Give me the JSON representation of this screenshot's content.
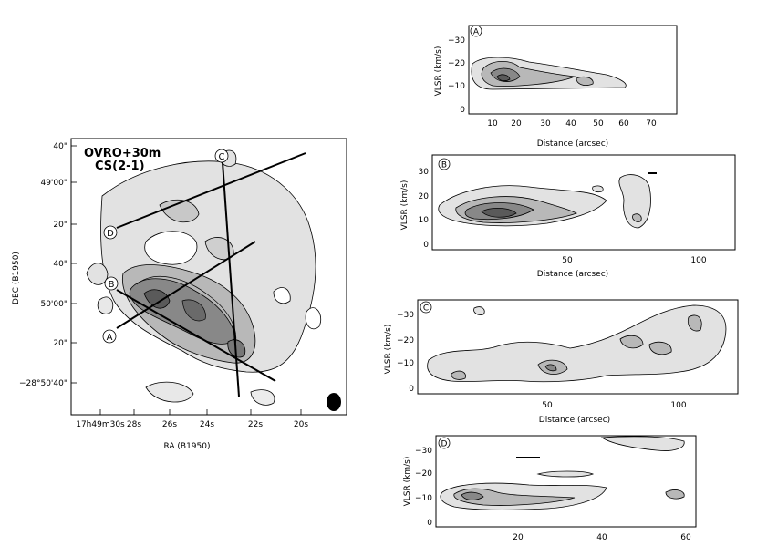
{
  "main_map": {
    "title_line1": "OVRO+30m",
    "title_line2": "CS(2-1)",
    "xlabel": "RA (B1950)",
    "ylabel": "DEC (B1950)",
    "dec_ticks": [
      "40\"",
      "49'00\"",
      "20\"",
      "40\"",
      "50'00\"",
      "20\"",
      "−28°50'40\""
    ],
    "ra_ticks": [
      "17h49m30s",
      "28s",
      "26s",
      "24s",
      "22s",
      "20s"
    ],
    "cut_labels": [
      "A",
      "B",
      "C",
      "D"
    ]
  },
  "panels": [
    {
      "id": "A",
      "xlabel": "Distance (arcsec)",
      "ylabel": "VLSR (km/s)",
      "xticks": [
        "10",
        "20",
        "30",
        "40",
        "50",
        "60",
        "70"
      ],
      "yticks": [
        "−30",
        "−20",
        "−10",
        "0"
      ]
    },
    {
      "id": "B",
      "xlabel": "Distance (arcsec)",
      "ylabel": "VLSR (km/s)",
      "xticks": [
        "50",
        "100"
      ],
      "yticks": [
        "30",
        "20",
        "10",
        "0"
      ]
    },
    {
      "id": "C",
      "xlabel": "Distance (arcsec)",
      "ylabel": "VLSR (km/s)",
      "xticks": [
        "50",
        "100"
      ],
      "yticks": [
        "−30",
        "−20",
        "−10",
        "0"
      ]
    },
    {
      "id": "D",
      "xlabel": "",
      "ylabel": "VLSR (km/s)",
      "xticks": [
        "20",
        "40",
        "60"
      ],
      "yticks": [
        "−30",
        "−20",
        "−10",
        "0"
      ]
    }
  ],
  "colors": {
    "fill_light": "#e2e2e2",
    "fill_mid": "#b8b8b8",
    "fill_dark": "#888888",
    "fill_darker": "#5a5a5a",
    "ink": "#000000"
  }
}
